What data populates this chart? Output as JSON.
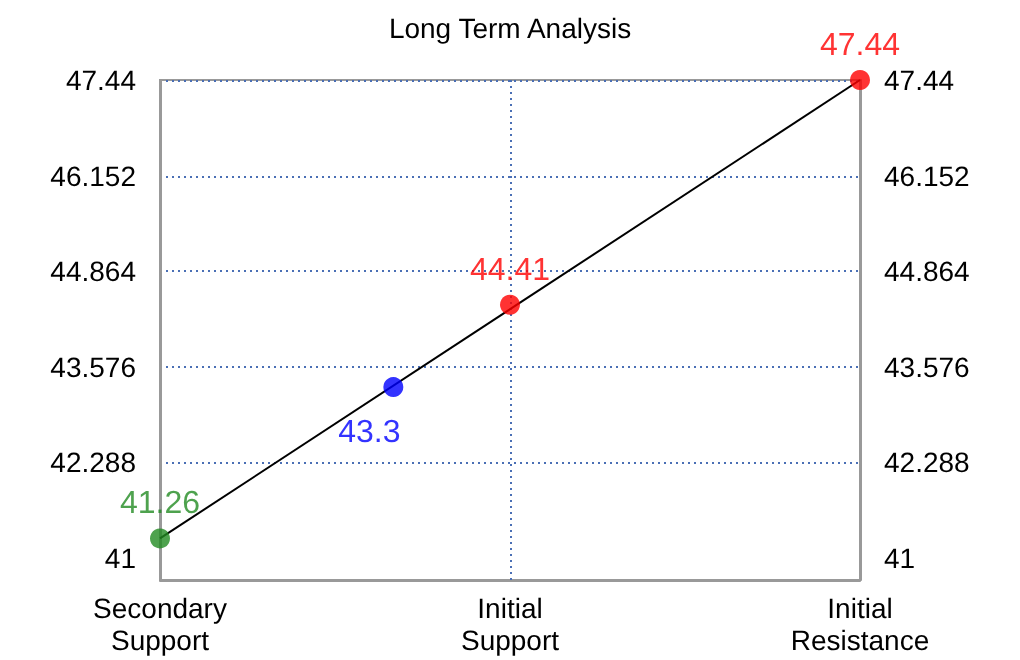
{
  "chart_data": {
    "type": "scatter",
    "title": "Long Term Analysis",
    "categories": [
      "Secondary Support",
      null,
      null,
      "Initial Support",
      null,
      null,
      "Initial Resistance"
    ],
    "ylim": [
      40.7,
      47.44
    ],
    "yticks": [
      41,
      42.288,
      43.576,
      44.864,
      46.152,
      47.44
    ],
    "y2lim": [
      40.7,
      47.44
    ],
    "y2ticks": [
      41,
      42.288,
      43.576,
      44.864,
      46.152,
      47.44
    ],
    "grid": true,
    "series": [
      {
        "type": "line",
        "values": [
          41.26,
          null,
          null,
          null,
          null,
          null,
          47.44
        ],
        "color": "#000000",
        "marker": "none"
      },
      {
        "values": [
          41.26,
          null,
          43.3,
          44.41,
          null,
          null,
          47.44
        ],
        "colors": [
          "#228b22",
          null,
          "#0000ff",
          "#ff0000",
          null,
          null,
          "#ff0000"
        ],
        "value_labels": [
          "41.26",
          null,
          "43.3",
          "44.41",
          null,
          null,
          "47.44"
        ],
        "marker": "circle"
      }
    ]
  }
}
